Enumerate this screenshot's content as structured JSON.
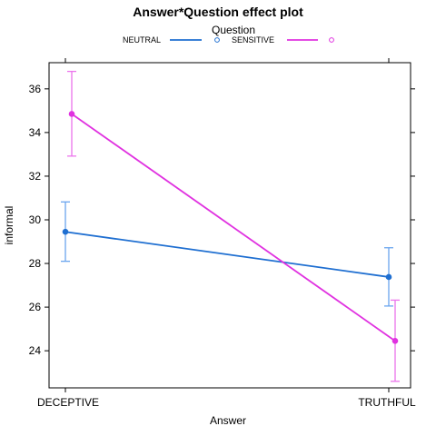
{
  "chart_data": {
    "type": "line",
    "title": "Answer*Question effect plot",
    "xlabel": "Answer",
    "ylabel": "informal",
    "categories": [
      "DECEPTIVE",
      "TRUTHFUL"
    ],
    "ylim": [
      22.3,
      37.2
    ],
    "yticks": [
      24,
      26,
      28,
      30,
      32,
      34,
      36
    ],
    "grid": false,
    "legend": {
      "title": "Question",
      "placement": "top-center",
      "layout": "horizontal"
    },
    "series": [
      {
        "name": "NEUTRAL",
        "color": "#1f6fd1",
        "error_color": "#6aa5ef",
        "values": [
          29.45,
          27.38
        ],
        "lower": [
          28.1,
          26.05
        ],
        "upper": [
          30.82,
          28.72
        ]
      },
      {
        "name": "SENSITIVE",
        "color": "#e032e0",
        "error_color": "#ec74ec",
        "values": [
          34.85,
          24.45
        ],
        "lower": [
          32.92,
          22.6
        ],
        "upper": [
          36.8,
          26.32
        ]
      }
    ]
  }
}
